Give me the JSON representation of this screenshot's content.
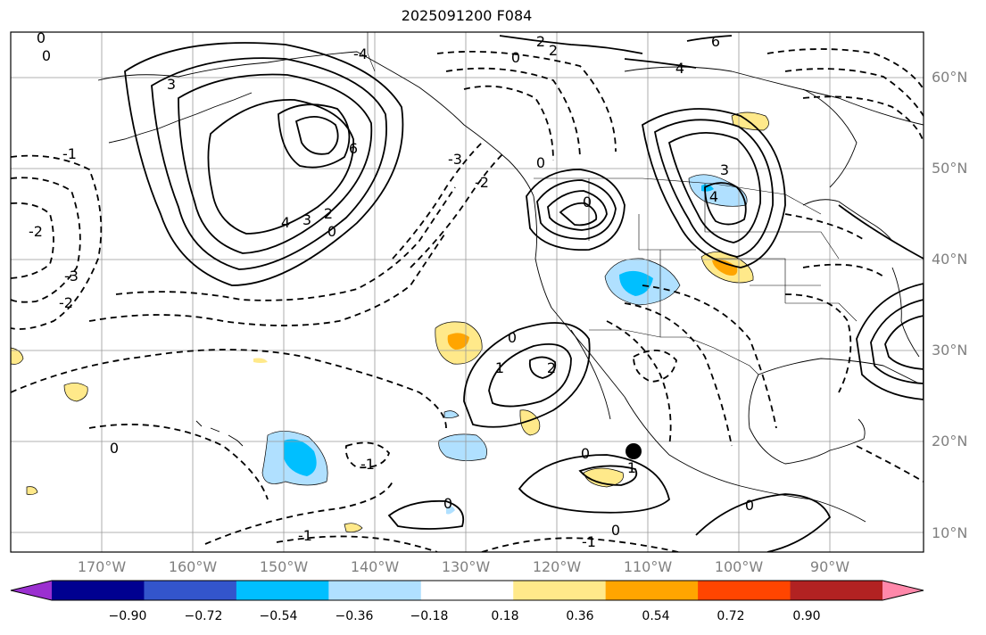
{
  "title": "2025091200 F084",
  "lat_labels": [
    "60°N",
    "50°N",
    "40°N",
    "30°N",
    "20°N",
    "10°N"
  ],
  "lon_labels": [
    "170°W",
    "160°W",
    "150°W",
    "140°W",
    "130°W",
    "120°W",
    "110°W",
    "100°W",
    "90°W"
  ],
  "colorbar": {
    "ticks": [
      "−0.90",
      "−0.72",
      "−0.54",
      "−0.36",
      "−0.18",
      "0.18",
      "0.36",
      "0.54",
      "0.72",
      "0.90"
    ],
    "colors": [
      "#9b30d0",
      "#000090",
      "#3355cc",
      "#00bfff",
      "#b0e0ff",
      "#ffffff",
      "#ffe98a",
      "#ffa500",
      "#ff4500",
      "#b22222",
      "#ff88aa"
    ]
  },
  "contour_labels": [
    "0",
    "0",
    "2",
    "2",
    "6",
    "4",
    "-1",
    "3",
    "6",
    "-2",
    "-3",
    "-2",
    "-2",
    "4",
    "3",
    "2",
    "0",
    "-3",
    "-4",
    "0",
    "0",
    "3",
    "4",
    "0",
    "1",
    "2",
    "0",
    "-1",
    "0",
    "-1",
    "0",
    "1",
    "0",
    "-1",
    "0",
    "0"
  ],
  "colors": {
    "frame": "#000000",
    "grid": "#999999",
    "label_gray": "#808080"
  },
  "marker": {
    "name": "black-dot",
    "lon": -111,
    "lat": 19
  }
}
